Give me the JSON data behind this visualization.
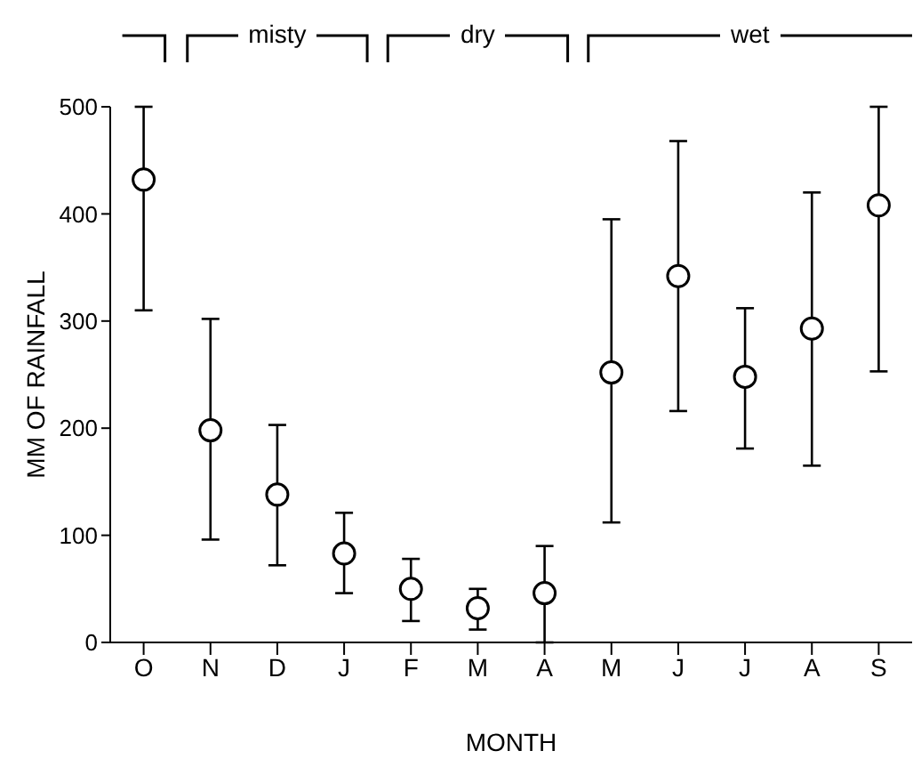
{
  "chart_data": {
    "type": "scatter",
    "xlabel": "MONTH",
    "ylabel": "MM OF RAINFALL",
    "categories": [
      "O",
      "N",
      "D",
      "J",
      "F",
      "M",
      "A",
      "M",
      "J",
      "J",
      "A",
      "S"
    ],
    "series": [
      {
        "color": "#000000",
        "values": [
          432,
          198,
          138,
          83,
          50,
          32,
          46,
          252,
          342,
          248,
          293,
          408
        ],
        "errors": [
          [
            310,
            500
          ],
          [
            96,
            302
          ],
          [
            72,
            203
          ],
          [
            46,
            121
          ],
          [
            20,
            78
          ],
          [
            12,
            50
          ],
          [
            0,
            90
          ],
          [
            112,
            395
          ],
          [
            216,
            468
          ],
          [
            181,
            312
          ],
          [
            165,
            420
          ],
          [
            253,
            500
          ]
        ]
      }
    ],
    "ylim": [
      0,
      500
    ],
    "yticks": [
      0,
      100,
      200,
      300,
      400,
      500
    ],
    "annotations": [
      "misty",
      "dry",
      "wet"
    ],
    "marker": "circle",
    "grid": false,
    "legend": false
  }
}
